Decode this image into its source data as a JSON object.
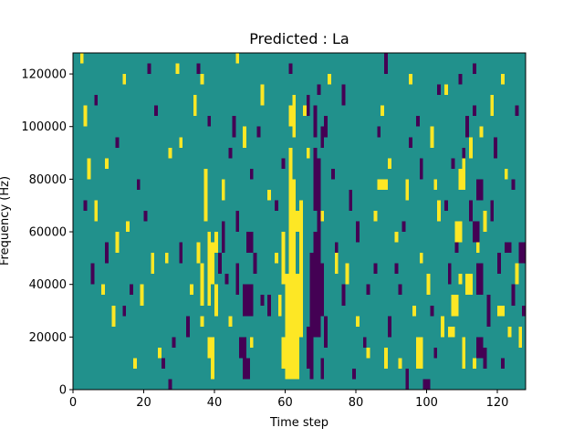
{
  "chart_data": {
    "type": "heatmap",
    "title": "Predicted : La",
    "xlabel": "Time step",
    "ylabel": "Frequency (Hz)",
    "xlim": [
      0,
      128
    ],
    "ylim": [
      0,
      128000
    ],
    "x_ticks": [
      0,
      20,
      40,
      60,
      80,
      100,
      120
    ],
    "x_tick_labels": [
      "0",
      "20",
      "40",
      "60",
      "80",
      "100",
      "120"
    ],
    "y_ticks": [
      0,
      20000,
      40000,
      60000,
      80000,
      100000,
      120000
    ],
    "y_tick_labels": [
      "0",
      "20000",
      "40000",
      "60000",
      "80000",
      "100000",
      "120000"
    ],
    "grid": false,
    "legend": "none",
    "colors": {
      "low": "#440154",
      "mid": "#21918c",
      "high": "#fde725",
      "frame": "#000000"
    },
    "cells": {
      "value_scale": "0 = low, 1 = mid (background), 2 = high",
      "background": 1,
      "column_width": 1,
      "row_height": 4000,
      "high": [
        [
          60,
          4000,
          64,
          44000
        ],
        [
          61,
          44000,
          63,
          68000
        ],
        [
          59,
          40000,
          60,
          60000
        ],
        [
          61,
          68000,
          63,
          80000
        ],
        [
          61,
          80000,
          62,
          92000
        ],
        [
          62,
          96000,
          63,
          112000
        ],
        [
          63,
          60000,
          64,
          68000
        ],
        [
          64,
          20000,
          65,
          72000
        ],
        [
          59,
          8000,
          60,
          20000
        ],
        [
          58,
          28000,
          59,
          36000
        ],
        [
          61,
          100000,
          62,
          108000
        ],
        [
          38,
          32000,
          39,
          60000
        ],
        [
          39,
          40000,
          40,
          56000
        ],
        [
          40,
          28000,
          41,
          40000
        ],
        [
          38,
          12000,
          40,
          20000
        ],
        [
          39,
          4000,
          40,
          12000
        ],
        [
          37,
          64000,
          38,
          84000
        ],
        [
          36,
          32000,
          37,
          48000
        ],
        [
          36,
          24000,
          37,
          28000
        ],
        [
          40,
          52000,
          41,
          60000
        ],
        [
          35,
          48000,
          36,
          56000
        ],
        [
          107,
          28000,
          109,
          36000
        ],
        [
          108,
          56000,
          110,
          64000
        ],
        [
          109,
          76000,
          111,
          84000
        ],
        [
          110,
          84000,
          111,
          88000
        ],
        [
          111,
          36000,
          113,
          44000
        ],
        [
          112,
          88000,
          113,
          96000
        ],
        [
          106,
          20000,
          108,
          24000
        ],
        [
          109,
          40000,
          110,
          44000
        ],
        [
          92,
          8000,
          93,
          12000
        ],
        [
          88,
          8000,
          89,
          16000
        ],
        [
          97,
          8000,
          99,
          20000
        ],
        [
          104,
          20000,
          105,
          28000
        ],
        [
          110,
          8000,
          111,
          20000
        ],
        [
          4,
          80000,
          5,
          88000
        ],
        [
          9,
          84000,
          10,
          88000
        ],
        [
          15,
          60000,
          16,
          64000
        ],
        [
          22,
          44000,
          23,
          52000
        ],
        [
          30,
          92000,
          31,
          96000
        ],
        [
          34,
          104000,
          35,
          112000
        ],
        [
          48,
          92000,
          49,
          100000
        ],
        [
          53,
          108000,
          54,
          116000
        ],
        [
          65,
          104000,
          66,
          108000
        ],
        [
          72,
          116000,
          73,
          120000
        ],
        [
          80,
          24000,
          81,
          28000
        ],
        [
          85,
          64000,
          86,
          68000
        ],
        [
          89,
          84000,
          90,
          88000
        ],
        [
          95,
          116000,
          96,
          120000
        ],
        [
          101,
          92000,
          102,
          100000
        ],
        [
          103,
          64000,
          104,
          72000
        ],
        [
          114,
          52000,
          115,
          60000
        ],
        [
          118,
          104000,
          119,
          112000
        ],
        [
          122,
          80000,
          123,
          84000
        ],
        [
          125,
          40000,
          126,
          48000
        ],
        [
          126,
          16000,
          127,
          24000
        ],
        [
          11,
          24000,
          12,
          32000
        ],
        [
          17,
          8000,
          18,
          12000
        ],
        [
          26,
          48000,
          27,
          52000
        ],
        [
          33,
          36000,
          34,
          40000
        ],
        [
          44,
          24000,
          45,
          28000
        ],
        [
          55,
          72000,
          56,
          76000
        ],
        [
          77,
          40000,
          78,
          48000
        ],
        [
          83,
          12000,
          84,
          16000
        ],
        [
          91,
          56000,
          92,
          60000
        ],
        [
          100,
          36000,
          101,
          44000
        ],
        [
          116,
          60000,
          117,
          68000
        ],
        [
          3,
          100000,
          4,
          108000
        ],
        [
          12,
          52000,
          13,
          60000
        ],
        [
          19,
          32000,
          20,
          40000
        ],
        [
          29,
          120000,
          30,
          124000
        ],
        [
          42,
          72000,
          43,
          80000
        ],
        [
          50,
          16000,
          51,
          20000
        ],
        [
          66,
          88000,
          67,
          92000
        ],
        [
          74,
          44000,
          75,
          52000
        ],
        [
          87,
          104000,
          88,
          108000
        ],
        [
          94,
          72000,
          95,
          80000
        ],
        [
          105,
          112000,
          106,
          116000
        ],
        [
          120,
          28000,
          122,
          32000
        ],
        [
          6,
          64000,
          7,
          72000
        ],
        [
          24,
          12000,
          25,
          16000
        ],
        [
          46,
          124000,
          47,
          128000
        ],
        [
          68,
          28000,
          69,
          32000
        ],
        [
          98,
          48000,
          99,
          52000
        ],
        [
          115,
          96000,
          116,
          100000
        ],
        [
          123,
          20000,
          124,
          24000
        ],
        [
          8,
          36000,
          9,
          40000
        ],
        [
          27,
          88000,
          28,
          92000
        ],
        [
          57,
          48000,
          58,
          52000
        ],
        [
          70,
          64000,
          71,
          68000
        ],
        [
          96,
          28000,
          97,
          32000
        ],
        [
          121,
          116000,
          122,
          120000
        ],
        [
          2,
          124000,
          3,
          128000
        ],
        [
          14,
          116000,
          15,
          120000
        ],
        [
          36,
          116000,
          37,
          120000
        ],
        [
          113,
          8000,
          114,
          12000
        ],
        [
          86,
          76000,
          89,
          80000
        ],
        [
          102,
          76000,
          103,
          80000
        ]
      ],
      "low": [
        [
          67,
          4000,
          68,
          52000
        ],
        [
          68,
          20000,
          70,
          60000
        ],
        [
          69,
          60000,
          70,
          88000
        ],
        [
          70,
          28000,
          71,
          48000
        ],
        [
          68,
          68000,
          69,
          92000
        ],
        [
          66,
          104000,
          67,
          112000
        ],
        [
          68,
          96000,
          69,
          108000
        ],
        [
          70,
          92000,
          71,
          100000
        ],
        [
          71,
          96000,
          72,
          104000
        ],
        [
          69,
          112000,
          70,
          116000
        ],
        [
          66,
          8000,
          67,
          24000
        ],
        [
          71,
          16000,
          72,
          28000
        ],
        [
          70,
          4000,
          71,
          12000
        ],
        [
          48,
          28000,
          51,
          40000
        ],
        [
          49,
          52000,
          51,
          60000
        ],
        [
          47,
          12000,
          49,
          20000
        ],
        [
          48,
          4000,
          50,
          12000
        ],
        [
          42,
          52000,
          43,
          64000
        ],
        [
          46,
          36000,
          47,
          48000
        ],
        [
          46,
          60000,
          47,
          68000
        ],
        [
          45,
          96000,
          46,
          104000
        ],
        [
          50,
          80000,
          51,
          84000
        ],
        [
          51,
          44000,
          52,
          52000
        ],
        [
          114,
          36000,
          116,
          48000
        ],
        [
          114,
          72000,
          116,
          80000
        ],
        [
          113,
          56000,
          115,
          64000
        ],
        [
          117,
          24000,
          118,
          36000
        ],
        [
          114,
          12000,
          116,
          20000
        ],
        [
          116,
          8000,
          117,
          16000
        ],
        [
          111,
          96000,
          112,
          104000
        ],
        [
          106,
          40000,
          107,
          48000
        ],
        [
          110,
          88000,
          111,
          92000
        ],
        [
          113,
          104000,
          114,
          108000
        ],
        [
          112,
          64000,
          113,
          72000
        ],
        [
          94,
          0,
          95,
          8000
        ],
        [
          99,
          0,
          101,
          4000
        ],
        [
          95,
          92000,
          96,
          96000
        ],
        [
          109,
          116000,
          110,
          120000
        ],
        [
          103,
          112000,
          104,
          116000
        ],
        [
          85,
          44000,
          86,
          48000
        ],
        [
          83,
          36000,
          84,
          40000
        ],
        [
          80,
          56000,
          81,
          64000
        ],
        [
          89,
          20000,
          90,
          28000
        ],
        [
          76,
          108000,
          77,
          116000
        ],
        [
          74,
          52000,
          75,
          56000
        ],
        [
          25,
          8000,
          26,
          12000
        ],
        [
          20,
          64000,
          21,
          68000
        ],
        [
          27,
          0,
          28,
          4000
        ],
        [
          12,
          92000,
          13,
          96000
        ],
        [
          5,
          40000,
          6,
          48000
        ],
        [
          14,
          28000,
          15,
          32000
        ],
        [
          30,
          48000,
          31,
          56000
        ],
        [
          32,
          20000,
          33,
          28000
        ],
        [
          41,
          44000,
          42,
          52000
        ],
        [
          44,
          88000,
          45,
          92000
        ],
        [
          55,
          28000,
          56,
          36000
        ],
        [
          57,
          68000,
          58,
          72000
        ],
        [
          73,
          80000,
          74,
          84000
        ],
        [
          78,
          68000,
          79,
          76000
        ],
        [
          82,
          16000,
          83,
          20000
        ],
        [
          86,
          96000,
          87,
          100000
        ],
        [
          91,
          44000,
          92,
          48000
        ],
        [
          97,
          100000,
          98,
          104000
        ],
        [
          105,
          68000,
          106,
          72000
        ],
        [
          118,
          64000,
          119,
          72000
        ],
        [
          120,
          44000,
          121,
          52000
        ],
        [
          122,
          52000,
          124,
          56000
        ],
        [
          124,
          32000,
          125,
          40000
        ],
        [
          126,
          48000,
          128,
          56000
        ],
        [
          124,
          76000,
          125,
          80000
        ],
        [
          9,
          48000,
          10,
          56000
        ],
        [
          18,
          76000,
          19,
          80000
        ],
        [
          23,
          104000,
          24,
          108000
        ],
        [
          35,
          120000,
          36,
          124000
        ],
        [
          53,
          32000,
          54,
          36000
        ],
        [
          61,
          120000,
          62,
          124000
        ],
        [
          79,
          4000,
          80,
          8000
        ],
        [
          93,
          60000,
          94,
          64000
        ],
        [
          101,
          28000,
          102,
          32000
        ],
        [
          107,
          84000,
          108,
          88000
        ],
        [
          119,
          88000,
          120,
          96000
        ],
        [
          3,
          68000,
          4,
          72000
        ],
        [
          16,
          36000,
          17,
          40000
        ],
        [
          28,
          16000,
          29,
          20000
        ],
        [
          38,
          100000,
          39,
          104000
        ],
        [
          52,
          96000,
          53,
          100000
        ],
        [
          59,
          84000,
          60,
          88000
        ],
        [
          88,
          120000,
          89,
          128000
        ],
        [
          92,
          36000,
          93,
          40000
        ],
        [
          102,
          12000,
          103,
          16000
        ],
        [
          108,
          52000,
          109,
          56000
        ],
        [
          121,
          8000,
          122,
          12000
        ],
        [
          127,
          28000,
          128,
          32000
        ],
        [
          6,
          108000,
          7,
          112000
        ],
        [
          21,
          120000,
          22,
          124000
        ],
        [
          43,
          40000,
          44,
          44000
        ],
        [
          76,
          32000,
          77,
          40000
        ],
        [
          98,
          80000,
          99,
          88000
        ],
        [
          113,
          120000,
          114,
          124000
        ],
        [
          125,
          104000,
          126,
          108000
        ]
      ]
    }
  }
}
